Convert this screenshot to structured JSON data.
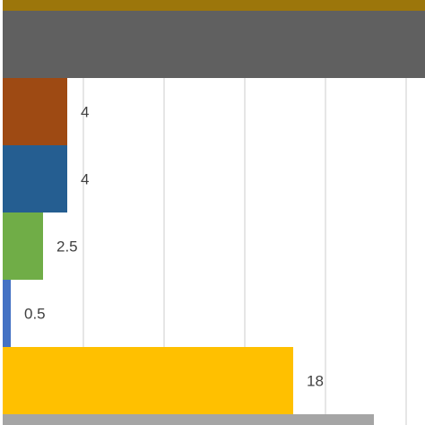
{
  "chart_data": {
    "type": "bar",
    "orientation": "horizontal",
    "grid": true,
    "gridline_step": 5,
    "bars": [
      {
        "value": null,
        "label": "",
        "color": "#9c760b",
        "cut_off": true
      },
      {
        "value": null,
        "label": "",
        "color": "#606060",
        "cut_off": true
      },
      {
        "value": 4,
        "label": "4",
        "color": "#9e4a13"
      },
      {
        "value": 4,
        "label": "4",
        "color": "#255e91"
      },
      {
        "value": 2.5,
        "label": "2.5",
        "color": "#70ad47"
      },
      {
        "value": 0.5,
        "label": "0.5",
        "color": "#4472c4"
      },
      {
        "value": 18,
        "label": "18",
        "color": "#ffc000"
      },
      {
        "value": null,
        "label": "",
        "color": "#a5a5a5",
        "cut_off": true
      }
    ]
  }
}
